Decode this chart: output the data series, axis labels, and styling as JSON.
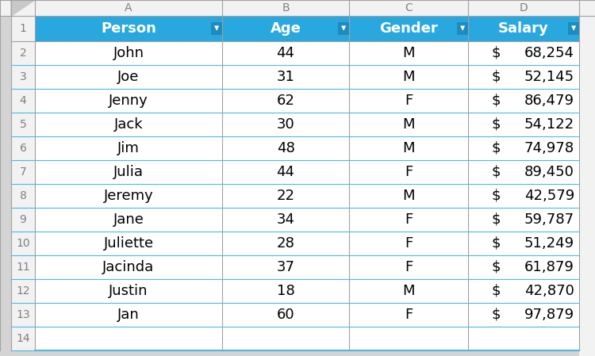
{
  "headers": [
    "Person",
    "Age",
    "Gender",
    "Salary"
  ],
  "rows": [
    [
      "John",
      "44",
      "M",
      "$",
      "68,254"
    ],
    [
      "Joe",
      "31",
      "M",
      "$",
      "52,145"
    ],
    [
      "Jenny",
      "62",
      "F",
      "$",
      "86,479"
    ],
    [
      "Jack",
      "30",
      "M",
      "$",
      "54,122"
    ],
    [
      "Jim",
      "48",
      "M",
      "$",
      "74,978"
    ],
    [
      "Julia",
      "44",
      "F",
      "$",
      "89,450"
    ],
    [
      "Jeremy",
      "22",
      "M",
      "$",
      "42,579"
    ],
    [
      "Jane",
      "34",
      "F",
      "$",
      "59,787"
    ],
    [
      "Juliette",
      "28",
      "F",
      "$",
      "51,249"
    ],
    [
      "Jacinda",
      "37",
      "F",
      "$",
      "61,879"
    ],
    [
      "Justin",
      "18",
      "M",
      "$",
      "42,870"
    ],
    [
      "Jan",
      "60",
      "F",
      "$",
      "97,879"
    ]
  ],
  "header_bg": "#29A8E0",
  "header_text": "#FFFFFF",
  "row_bg": "#FFFFFF",
  "row_border": "#4DB8E8",
  "cell_text": "#000000",
  "row_num_bg": "#F2F2F2",
  "row_num_text": "#7F7F7F",
  "col_hdr_bg": "#F2F2F2",
  "col_hdr_text": "#808080",
  "outer_bg": "#E8E8E8",
  "grid_color": "#A0A0A0",
  "header_font_size": 13,
  "cell_font_size": 13,
  "small_font_size": 10,
  "figure_bg": "#D4D4D4"
}
